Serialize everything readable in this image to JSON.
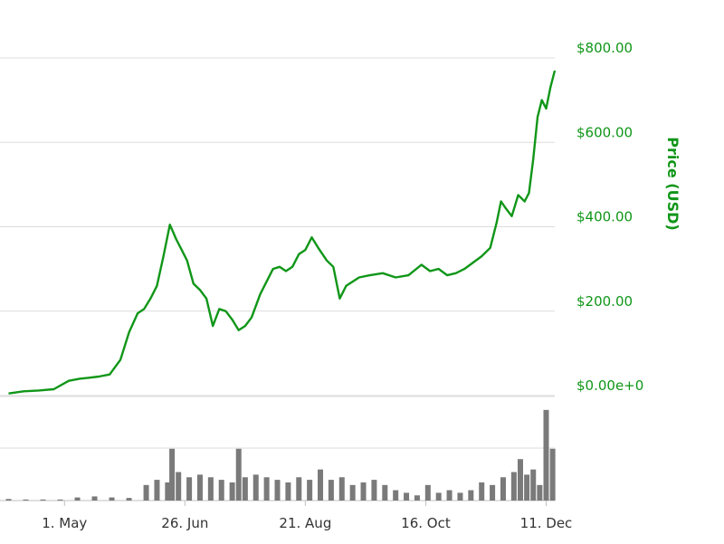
{
  "colors": {
    "price_line": "#109618",
    "volume_bars": "#7a7a7a",
    "gridline": "#dcdcdc",
    "axis_text": "#333333"
  },
  "chart_data": [
    {
      "type": "line",
      "ylabel": "Price (USD)",
      "ylim": [
        0,
        800
      ],
      "yticks": [
        0,
        200,
        400,
        600,
        800
      ],
      "ytick_labels": [
        "$0.00e+0",
        "$200.00",
        "$400.00",
        "$600.00",
        "$800.00"
      ],
      "ytick_position": "right",
      "grid": true,
      "series": [
        {
          "x": [
            "2013-04-05",
            "2013-04-12",
            "2013-04-19",
            "2013-04-26",
            "2013-05-03",
            "2013-05-08",
            "2013-05-12",
            "2013-05-17",
            "2013-05-22",
            "2013-05-27",
            "2013-05-31",
            "2013-06-04",
            "2013-06-07",
            "2013-06-10",
            "2013-06-13",
            "2013-06-16",
            "2013-06-19",
            "2013-06-22",
            "2013-06-24",
            "2013-06-27",
            "2013-06-30",
            "2013-07-03",
            "2013-07-06",
            "2013-07-09",
            "2013-07-12",
            "2013-07-15",
            "2013-07-18",
            "2013-07-21",
            "2013-07-24",
            "2013-07-27",
            "2013-07-31",
            "2013-08-03",
            "2013-08-06",
            "2013-08-09",
            "2013-08-12",
            "2013-08-15",
            "2013-08-18",
            "2013-08-21",
            "2013-08-24",
            "2013-08-27",
            "2013-08-31",
            "2013-09-03",
            "2013-09-06",
            "2013-09-09",
            "2013-09-12",
            "2013-09-15",
            "2013-09-20",
            "2013-09-26",
            "2013-10-02",
            "2013-10-08",
            "2013-10-14",
            "2013-10-18",
            "2013-10-22",
            "2013-10-26",
            "2013-10-30",
            "2013-11-03",
            "2013-11-07",
            "2013-11-11",
            "2013-11-15",
            "2013-11-18",
            "2013-11-20",
            "2013-11-22",
            "2013-11-25",
            "2013-11-28",
            "2013-12-01",
            "2013-12-03",
            "2013-12-05",
            "2013-12-07",
            "2013-12-09",
            "2013-12-11",
            "2013-12-13",
            "2013-12-15"
          ],
          "y": [
            5,
            10,
            12,
            15,
            35,
            40,
            42,
            45,
            50,
            85,
            150,
            195,
            205,
            230,
            260,
            330,
            405,
            370,
            350,
            320,
            265,
            250,
            230,
            165,
            205,
            200,
            180,
            155,
            165,
            185,
            240,
            270,
            300,
            305,
            295,
            305,
            335,
            345,
            375,
            350,
            320,
            305,
            230,
            260,
            270,
            280,
            285,
            290,
            280,
            285,
            310,
            295,
            300,
            285,
            290,
            300,
            315,
            330,
            350,
            410,
            460,
            445,
            425,
            475,
            460,
            480,
            560,
            660,
            700,
            680,
            730,
            770
          ]
        }
      ]
    },
    {
      "type": "bar",
      "title": "",
      "xlabel": "",
      "ylabel": "",
      "x_tick_labels": [
        "1. May",
        "26. Jun",
        "21. Aug",
        "16. Oct",
        "11. Dec"
      ],
      "x_tick_dates": [
        "2013-05-01",
        "2013-06-26",
        "2013-08-21",
        "2013-10-16",
        "2013-12-11"
      ],
      "grid": true,
      "x": [
        "2013-04-05",
        "2013-04-13",
        "2013-04-21",
        "2013-04-29",
        "2013-05-07",
        "2013-05-15",
        "2013-05-23",
        "2013-05-31",
        "2013-06-08",
        "2013-06-13",
        "2013-06-18",
        "2013-06-20",
        "2013-06-23",
        "2013-06-28",
        "2013-07-03",
        "2013-07-08",
        "2013-07-13",
        "2013-07-18",
        "2013-07-21",
        "2013-07-24",
        "2013-07-29",
        "2013-08-03",
        "2013-08-08",
        "2013-08-13",
        "2013-08-18",
        "2013-08-23",
        "2013-08-28",
        "2013-09-02",
        "2013-09-07",
        "2013-09-12",
        "2013-09-17",
        "2013-09-22",
        "2013-09-27",
        "2013-10-02",
        "2013-10-07",
        "2013-10-12",
        "2013-10-17",
        "2013-10-22",
        "2013-10-27",
        "2013-11-01",
        "2013-11-06",
        "2013-11-11",
        "2013-11-16",
        "2013-11-21",
        "2013-11-26",
        "2013-11-29",
        "2013-12-02",
        "2013-12-05",
        "2013-12-08",
        "2013-12-11",
        "2013-12-14"
      ],
      "values": [
        3,
        2,
        2,
        2,
        6,
        8,
        6,
        5,
        30,
        40,
        35,
        100,
        55,
        45,
        50,
        45,
        40,
        35,
        100,
        45,
        50,
        45,
        40,
        35,
        45,
        40,
        60,
        40,
        45,
        30,
        35,
        40,
        30,
        20,
        15,
        10,
        30,
        15,
        20,
        15,
        20,
        35,
        30,
        45,
        55,
        80,
        50,
        60,
        30,
        175,
        100
      ]
    }
  ]
}
